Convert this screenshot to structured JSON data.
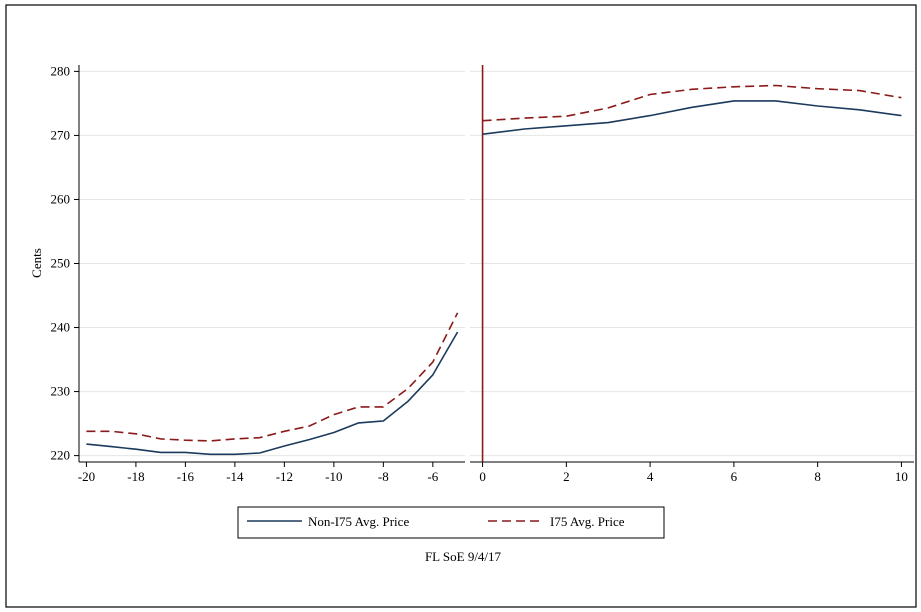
{
  "chart_data": [
    {
      "type": "line",
      "ylabel": "Cents",
      "ylim": [
        219,
        281
      ],
      "yticks": [
        220,
        230,
        240,
        250,
        260,
        270,
        280
      ],
      "xlim": [
        -20.3,
        -4.7
      ],
      "xticks": [
        -20,
        -18,
        -16,
        -14,
        -12,
        -10,
        -8,
        -6
      ],
      "grid": true,
      "series": [
        {
          "name": "Non-I75 Avg. Price",
          "color": "#1b3a5c",
          "style": "solid",
          "x": [
            -20,
            -19,
            -18,
            -17,
            -16,
            -15,
            -14,
            -13,
            -12,
            -11,
            -10,
            -9,
            -8,
            -7,
            -6,
            -5
          ],
          "y": [
            221.8,
            221.4,
            221.0,
            220.5,
            220.5,
            220.2,
            220.2,
            220.4,
            221.5,
            222.5,
            223.6,
            225.1,
            225.4,
            228.5,
            232.6,
            239.3
          ]
        },
        {
          "name": "I75 Avg. Price",
          "color": "#8b1a1a",
          "style": "dashed",
          "x": [
            -20,
            -19,
            -18,
            -17,
            -16,
            -15,
            -14,
            -13,
            -12,
            -11,
            -10,
            -9,
            -8,
            -7,
            -6,
            -5
          ],
          "y": [
            223.8,
            223.8,
            223.4,
            222.6,
            222.4,
            222.3,
            222.6,
            222.8,
            223.8,
            224.6,
            226.4,
            227.6,
            227.6,
            230.5,
            234.6,
            242.3
          ]
        }
      ]
    },
    {
      "type": "line",
      "ylim": [
        219,
        281
      ],
      "xlim": [
        -0.3,
        10.3
      ],
      "xticks": [
        0,
        2,
        4,
        6,
        8,
        10
      ],
      "grid": true,
      "event_line": {
        "x": 0,
        "color": "#8b1a1a"
      },
      "series": [
        {
          "name": "Non-I75 Avg. Price",
          "color": "#1b3a5c",
          "style": "solid",
          "x": [
            0,
            1,
            2,
            3,
            4,
            5,
            6,
            7,
            8,
            9,
            10
          ],
          "y": [
            270.2,
            271.0,
            271.5,
            272.0,
            273.1,
            274.4,
            275.4,
            275.4,
            274.6,
            274.0,
            273.1
          ]
        },
        {
          "name": "I75 Avg. Price",
          "color": "#8b1a1a",
          "style": "dashed",
          "x": [
            0,
            1,
            2,
            3,
            4,
            5,
            6,
            7,
            8,
            9,
            10
          ],
          "y": [
            272.3,
            272.7,
            273.0,
            274.3,
            276.4,
            277.2,
            277.6,
            277.8,
            277.3,
            277.0,
            275.9
          ]
        }
      ]
    }
  ],
  "legend": {
    "position": "bottom",
    "entries": [
      "Non-I75 Avg. Price",
      "I75 Avg. Price"
    ]
  },
  "note": "FL SoE 9/4/17"
}
